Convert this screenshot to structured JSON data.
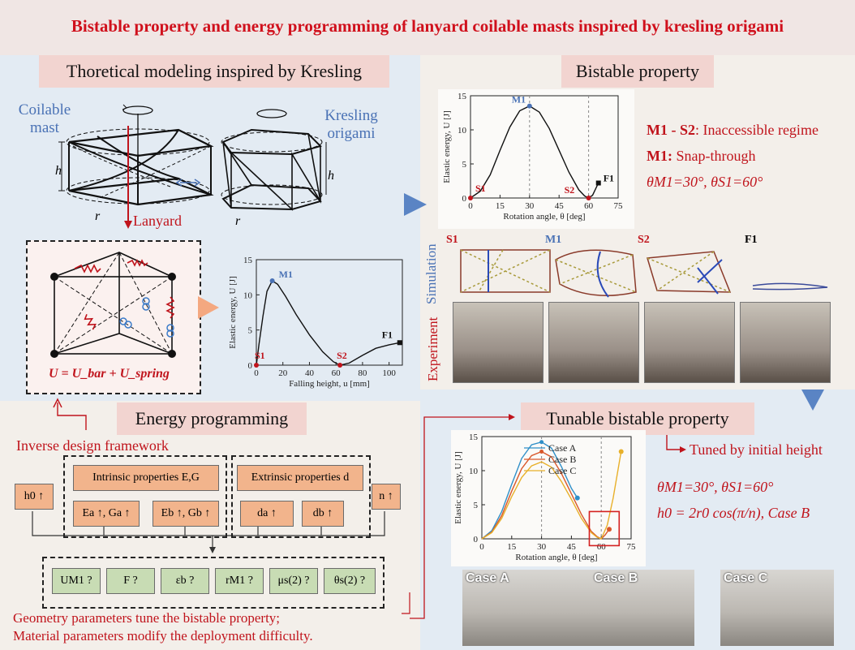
{
  "title": "Bistable property and energy programming of lanyard coilable masts inspired by kresling origami",
  "sections": {
    "modeling": "Thoretical modeling inspired by Kresling",
    "bistable": "Bistable property",
    "energy": "Energy programming",
    "tunable": "Tunable bistable property"
  },
  "modeling": {
    "coilable_line1": "Coilable",
    "coilable_line2": "mast",
    "kresling_line1": "Kresling",
    "kresling_line2": "origami",
    "h": "h",
    "r": "r",
    "lanyard": "Lanyard",
    "energy_formula": "U = U_bar + U_spring"
  },
  "bistable": {
    "m1s2_bold": "M1 - S2",
    "m1s2_text": ": Inaccessible regime",
    "m1_bold": "M1:",
    "m1_text": " Snap-through",
    "angles": "θM1=30°, θS1=60°",
    "simulation": "Simulation",
    "experiment": "Experiment",
    "states": [
      "S1",
      "M1",
      "S2",
      "F1"
    ]
  },
  "energy": {
    "inverse": "Inverse design framework",
    "h0": "h0 ↑",
    "n": "n ↑",
    "intrinsic": "Intrinsic properties E,G",
    "extrinsic": "Extrinsic properties d",
    "ea": "Ea ↑, Ga ↑",
    "eb": "Eb ↑, Gb ↑",
    "da": "da ↑",
    "db": "db ↑",
    "outputs": [
      "UM1 ?",
      "F ?",
      "εb ?",
      "rM1 ?",
      "μs(2) ?",
      "θs(2) ?"
    ],
    "conclusion1": "Geometry parameters tune the bistable property;",
    "conclusion2": "Material parameters modify the deployment difficulty."
  },
  "tunable": {
    "tuned": "Tuned by initial height",
    "angles": "θM1=30°, θS1=60°",
    "h0": "h0 = 2r0 cos(π/n), Case B",
    "cases": [
      "Case A",
      "Case B",
      "Case C"
    ]
  },
  "chart_data": [
    {
      "type": "line",
      "xlabel": "Falling height, u [mm]",
      "ylabel": "Elastic energy, U [J]",
      "xlim": [
        0,
        110
      ],
      "ylim": [
        0,
        15
      ],
      "xticks": [
        0,
        20,
        40,
        60,
        80,
        100
      ],
      "yticks": [
        0,
        5,
        10,
        15
      ],
      "x": [
        0,
        2,
        5,
        8,
        12,
        16,
        22,
        30,
        40,
        50,
        58,
        63,
        70,
        80,
        90,
        100,
        108
      ],
      "y": [
        0,
        3,
        7,
        10.5,
        12,
        11.5,
        9.8,
        7.2,
        4.3,
        1.9,
        0.5,
        0,
        0.3,
        1.4,
        2.4,
        2.9,
        3.2
      ],
      "points": [
        {
          "label": "S1",
          "x": 0,
          "y": 0
        },
        {
          "label": "M1",
          "x": 12,
          "y": 12
        },
        {
          "label": "S2",
          "x": 63,
          "y": 0
        },
        {
          "label": "F1",
          "x": 108,
          "y": 3.2
        }
      ]
    },
    {
      "type": "line",
      "xlabel": "Rotation angle, θ [deg]",
      "ylabel": "Elastic energy, U [J]",
      "xlim": [
        0,
        75
      ],
      "ylim": [
        0,
        15
      ],
      "xticks": [
        0,
        15,
        30,
        45,
        60,
        75
      ],
      "yticks": [
        0,
        5,
        10,
        15
      ],
      "x": [
        0,
        5,
        10,
        15,
        20,
        25,
        30,
        35,
        40,
        45,
        50,
        55,
        58,
        60,
        62,
        65
      ],
      "y": [
        0,
        1,
        3.4,
        7,
        10.4,
        12.8,
        13.5,
        12.6,
        10.2,
        7,
        3.8,
        1.2,
        0.3,
        0,
        0.4,
        2.2
      ],
      "points": [
        {
          "label": "S1",
          "x": 0,
          "y": 0
        },
        {
          "label": "M1",
          "x": 30,
          "y": 13.5
        },
        {
          "label": "S2",
          "x": 60,
          "y": 0
        },
        {
          "label": "F1",
          "x": 65,
          "y": 2.2
        }
      ]
    },
    {
      "type": "line",
      "xlabel": "Rotation angle, θ [deg]",
      "ylabel": "Elastic energy, U [J]",
      "xlim": [
        0,
        75
      ],
      "ylim": [
        0,
        15
      ],
      "xticks": [
        0,
        15,
        30,
        45,
        60,
        75
      ],
      "yticks": [
        0,
        5,
        10,
        15
      ],
      "series": [
        {
          "name": "Case A",
          "color": "#2f8fc8",
          "x": [
            0,
            5,
            10,
            15,
            20,
            25,
            30,
            35,
            40,
            45,
            48
          ],
          "y": [
            0,
            1.2,
            4,
            8,
            11.8,
            13.8,
            14.2,
            13.3,
            10.6,
            7.4,
            6
          ]
        },
        {
          "name": "Case B",
          "color": "#d9572a",
          "x": [
            0,
            5,
            10,
            15,
            20,
            25,
            30,
            35,
            40,
            45,
            50,
            55,
            58,
            60,
            62,
            64
          ],
          "y": [
            0,
            1,
            3.4,
            7,
            10.3,
            12.2,
            12.8,
            12,
            9.6,
            6.6,
            3.6,
            1.1,
            0.3,
            0,
            0.6,
            1.4
          ]
        },
        {
          "name": "Case C",
          "color": "#e8b02a",
          "x": [
            0,
            5,
            10,
            15,
            20,
            25,
            30,
            35,
            40,
            45,
            50,
            55,
            58,
            60,
            63,
            66,
            70
          ],
          "y": [
            0,
            0.9,
            3,
            6.2,
            9,
            10.7,
            11.3,
            10.5,
            8.4,
            5.8,
            3,
            0.9,
            0.2,
            0,
            2,
            6,
            12.8
          ]
        }
      ]
    }
  ]
}
